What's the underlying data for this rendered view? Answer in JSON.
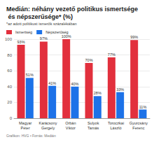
{
  "chart_data": {
    "type": "bar",
    "title": "Medián: néhány vezető politikus ismertsége és népszerűsége* (%)",
    "subtitle": "*az adott politikust ismerők százalékában",
    "footer": "Grafikon: HVG • Forrás: Medián",
    "categories": [
      "Magyar Péter",
      "Karácsony Gergely",
      "Orbán Viktor",
      "Sulyok Tamás",
      "Toroczkai László",
      "Gyurcsány Ferenc"
    ],
    "series": [
      {
        "name": "Ismertség",
        "color": "#e2303d",
        "values": [
          93,
          97,
          100,
          70,
          77,
          99
        ],
        "value_labels": [
          "93%",
          "97%",
          "100%",
          "70%",
          "77%",
          "99%"
        ]
      },
      {
        "name": "Népszerűség",
        "color": "#1d72e8",
        "values": [
          51,
          41,
          40,
          28,
          33,
          11
        ],
        "value_labels": [
          "51%",
          "41%",
          "40%",
          "28%",
          "33%",
          "11%"
        ]
      }
    ],
    "ylim": [
      0,
      100
    ],
    "yticks": [
      0,
      20,
      40,
      60,
      80,
      100
    ],
    "grid": true,
    "legend": "top-left",
    "data_labels": true
  }
}
